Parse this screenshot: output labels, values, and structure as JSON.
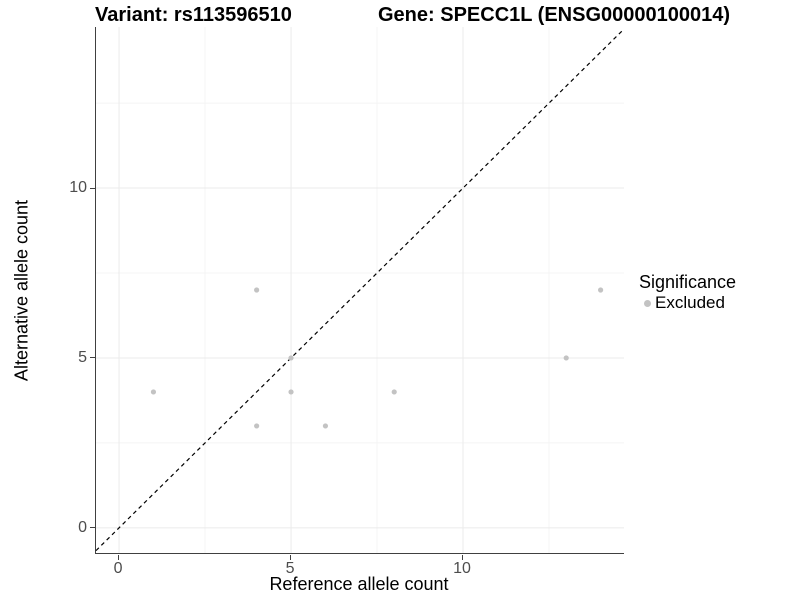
{
  "chart_data": {
    "type": "scatter",
    "titles": {
      "left": "Variant: rs113596510",
      "right": "Gene: SPECC1L (ENSG00000100014)"
    },
    "xlabel": "Reference allele count",
    "ylabel": "Alternative allele count",
    "xlim": [
      -0.67,
      14.68
    ],
    "ylim": [
      -0.74,
      14.74
    ],
    "x_ticks": [
      0,
      5,
      10
    ],
    "y_ticks": [
      0,
      5,
      10
    ],
    "x_minor_gridlines": [
      2.5,
      7.5,
      12.5
    ],
    "y_minor_gridlines": [
      2.5,
      7.5,
      12.5
    ],
    "grid": true,
    "identity_line": {
      "style": "dashed",
      "slope": 1,
      "intercept": 0,
      "color": "#000000"
    },
    "series": [
      {
        "name": "Excluded",
        "color": "#c3c3c3",
        "points": [
          [
            1,
            4
          ],
          [
            4,
            3
          ],
          [
            4,
            7
          ],
          [
            5,
            4
          ],
          [
            5,
            5
          ],
          [
            6,
            3
          ],
          [
            8,
            4
          ],
          [
            13,
            5
          ],
          [
            14,
            7
          ]
        ]
      }
    ],
    "legend": {
      "title": "Significance",
      "position": "right",
      "entries": [
        {
          "label": "Excluded",
          "color": "#c3c3c3"
        }
      ]
    },
    "colors": {
      "grid_major": "#ebebeb",
      "grid_minor": "#f4f4f4",
      "axis_line": "#404040",
      "tick_label": "#4d4d4d",
      "text": "#000000"
    }
  }
}
